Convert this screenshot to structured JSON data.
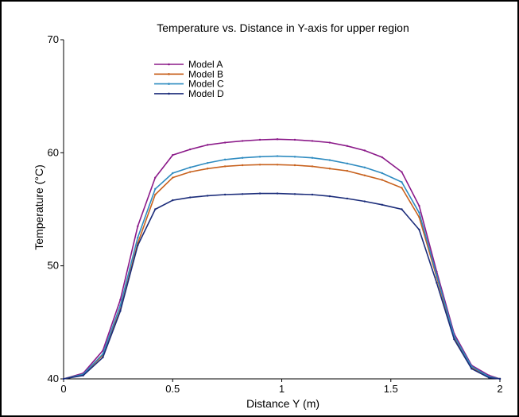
{
  "chart_data": {
    "type": "line",
    "title": "Temperature vs. Distance in Y-axis for upper region",
    "xlabel": "Distance Y (m)",
    "ylabel": "Temperature (°C)",
    "xlim": [
      0,
      2
    ],
    "ylim": [
      40,
      70
    ],
    "xticks": [
      0,
      0.5,
      1,
      1.5,
      2
    ],
    "yticks": [
      40,
      50,
      60,
      70
    ],
    "xtick_labels": [
      "0",
      "0.5",
      "1",
      "1.5",
      "2"
    ],
    "ytick_labels": [
      "40",
      "50",
      "60",
      "70"
    ],
    "grid": false,
    "legend_position": "top-left",
    "x": [
      0,
      0.09,
      0.18,
      0.26,
      0.34,
      0.42,
      0.5,
      0.58,
      0.66,
      0.74,
      0.82,
      0.9,
      0.98,
      1.06,
      1.14,
      1.22,
      1.3,
      1.38,
      1.46,
      1.55,
      1.63,
      1.71,
      1.79,
      1.87,
      1.95,
      2.0
    ],
    "series": [
      {
        "name": "Model A",
        "color": "#8B1A89",
        "values": [
          40,
          40.5,
          42.5,
          47.0,
          53.5,
          57.8,
          59.8,
          60.3,
          60.7,
          60.9,
          61.05,
          61.15,
          61.2,
          61.15,
          61.05,
          60.9,
          60.6,
          60.2,
          59.6,
          58.3,
          55.3,
          49.5,
          44.0,
          41.2,
          40.3,
          40
        ]
      },
      {
        "name": "Model B",
        "color": "#C8621E",
        "values": [
          40,
          40.4,
          42.1,
          46.1,
          52.0,
          56.3,
          57.8,
          58.3,
          58.6,
          58.8,
          58.9,
          58.95,
          58.95,
          58.9,
          58.8,
          58.6,
          58.4,
          58.0,
          57.6,
          56.9,
          54.3,
          49.0,
          43.7,
          41.0,
          40.2,
          40
        ]
      },
      {
        "name": "Model C",
        "color": "#2E8BC0",
        "values": [
          40,
          40.4,
          42.2,
          46.5,
          52.5,
          56.8,
          58.2,
          58.7,
          59.1,
          59.4,
          59.55,
          59.65,
          59.7,
          59.65,
          59.55,
          59.35,
          59.05,
          58.7,
          58.2,
          57.4,
          54.7,
          49.2,
          43.8,
          41.1,
          40.2,
          40
        ]
      },
      {
        "name": "Model D",
        "color": "#1B2C7A",
        "values": [
          40,
          40.3,
          41.9,
          46.0,
          51.8,
          55.0,
          55.8,
          56.05,
          56.2,
          56.3,
          56.35,
          56.4,
          56.4,
          56.35,
          56.3,
          56.15,
          55.95,
          55.7,
          55.4,
          55.0,
          53.2,
          48.5,
          43.5,
          40.9,
          40.1,
          40
        ]
      }
    ]
  }
}
